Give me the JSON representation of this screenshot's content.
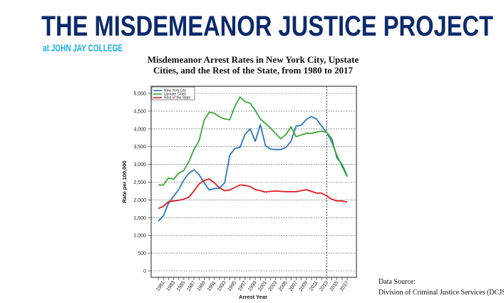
{
  "header": {
    "title": "THE MISDEMEANOR JUSTICE PROJECT",
    "subtitle": "at JOHN JAY COLLEGE",
    "title_color": "#0b2a6b",
    "subtitle_color": "#1aaee8"
  },
  "source": {
    "line1": "Data Source:",
    "line2": "Division of Criminal Justice Services (DCJS)"
  },
  "chart_data": {
    "type": "line",
    "title_lines": [
      "Misdemeanor Arrest Rates in New York City, Upstate",
      "Cities, and the Rest of the State, from 1980 to 2017"
    ],
    "xlabel": "Arrest Year",
    "ylabel": "Rate per 100,000",
    "xlim": [
      1980,
      2017
    ],
    "ylim": [
      0,
      5000
    ],
    "x_tick_labels": [
      "1981",
      "1983",
      "1985",
      "1987",
      "1989",
      "1991",
      "1993",
      "1995",
      "1997",
      "1999",
      "2001",
      "2003",
      "2005",
      "2007",
      "2009",
      "2011",
      "2013",
      "2015",
      "2017"
    ],
    "y_tick_labels": [
      "0",
      "500",
      "1,000",
      "1,500",
      "2,000",
      "2,500",
      "3,000",
      "3,500",
      "4,000",
      "4,500",
      "5,000"
    ],
    "grid": true,
    "legend_position": "top-left",
    "reference_line_x": 2013,
    "x": [
      1980,
      1981,
      1982,
      1983,
      1984,
      1985,
      1986,
      1987,
      1988,
      1989,
      1990,
      1991,
      1992,
      1993,
      1994,
      1995,
      1996,
      1997,
      1998,
      1999,
      2000,
      2001,
      2002,
      2003,
      2004,
      2005,
      2006,
      2007,
      2008,
      2009,
      2010,
      2011,
      2012,
      2013,
      2014,
      2015,
      2016,
      2017
    ],
    "series": [
      {
        "name": "New York City",
        "color": "#2a78c2",
        "values": [
          1400,
          1550,
          1900,
          2100,
          2290,
          2560,
          2750,
          2850,
          2710,
          2480,
          2280,
          2320,
          2330,
          2480,
          3260,
          3450,
          3480,
          3850,
          4000,
          3650,
          4120,
          3530,
          3430,
          3420,
          3420,
          3480,
          3650,
          4080,
          4100,
          4270,
          4350,
          4280,
          4080,
          3900,
          3720,
          3180,
          3000,
          2680
        ]
      },
      {
        "name": "Upstate Cities",
        "color": "#3aaa35",
        "values": [
          2420,
          2420,
          2620,
          2580,
          2750,
          2830,
          3080,
          3420,
          3670,
          4250,
          4470,
          4440,
          4340,
          4280,
          4260,
          4630,
          4900,
          4770,
          4720,
          4520,
          4280,
          4150,
          4020,
          3870,
          3720,
          3840,
          4060,
          3780,
          3830,
          3880,
          3870,
          3910,
          3940,
          3900,
          3620,
          3250,
          2950,
          2650
        ]
      },
      {
        "name": "Rest of the State",
        "color": "#e41a1c",
        "values": [
          1760,
          1820,
          1950,
          1970,
          1990,
          2020,
          2080,
          2250,
          2450,
          2550,
          2590,
          2480,
          2340,
          2260,
          2280,
          2350,
          2420,
          2410,
          2380,
          2290,
          2260,
          2220,
          2240,
          2250,
          2240,
          2230,
          2230,
          2230,
          2260,
          2290,
          2240,
          2190,
          2190,
          2110,
          2020,
          1970,
          1970,
          1940
        ]
      }
    ]
  }
}
